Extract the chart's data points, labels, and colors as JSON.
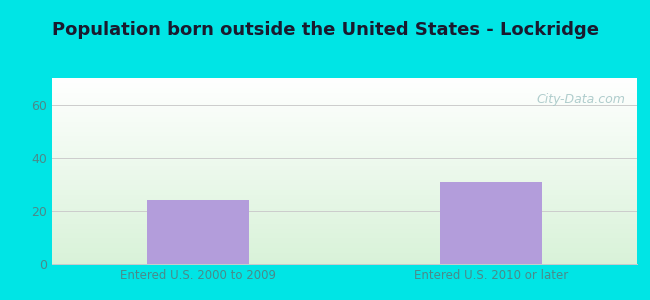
{
  "title": "Population born outside the United States - Lockridge",
  "categories": [
    "Entered U.S. 2000 to 2009",
    "Entered U.S. 2010 or later"
  ],
  "values": [
    24,
    31
  ],
  "bar_color": "#b39ddb",
  "bar_width": 0.35,
  "ylim": [
    0,
    70
  ],
  "yticks": [
    0,
    20,
    40,
    60
  ],
  "title_fontsize": 13,
  "title_color": "#1a1a2e",
  "tick_label_color": "#4a8a8a",
  "background_color": "#00e5e5",
  "plot_bg_color_bottom_left": "#c8eeda",
  "plot_bg_color_top_right": "#ffffff",
  "grid_color": "#cccccc",
  "watermark_text": "City-Data.com",
  "watermark_color": "#a8c8c8",
  "figure_width": 6.5,
  "figure_height": 3.0,
  "figure_dpi": 100
}
